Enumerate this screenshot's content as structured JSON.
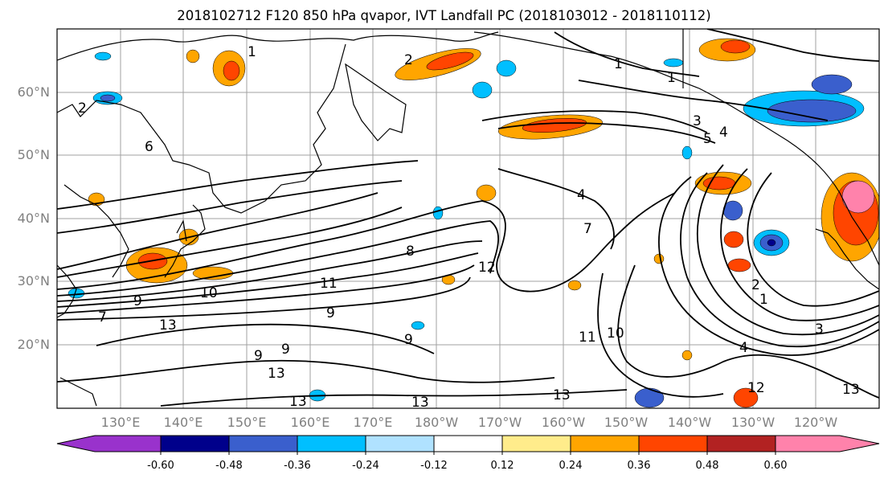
{
  "title": "2018102712 F120 850 hPa qvapor, IVT Landfall PC (2018103012 - 2018110112)",
  "map": {
    "latitude_labels": [
      "60°N",
      "50°N",
      "40°N",
      "30°N",
      "20°N"
    ],
    "longitude_labels": [
      "130°E",
      "140°E",
      "150°E",
      "160°E",
      "170°E",
      "180°W",
      "170°W",
      "160°W",
      "150°W",
      "140°W",
      "130°W",
      "120°W"
    ],
    "contour_labels": [
      "1",
      "2",
      "1",
      "1",
      "3",
      "4",
      "5",
      "2",
      "6",
      "4",
      "7",
      "8",
      "12",
      "11",
      "10",
      "9",
      "7",
      "13",
      "9",
      "9",
      "9",
      "9",
      "13",
      "13",
      "13",
      "13",
      "11",
      "10",
      "2",
      "1",
      "3",
      "4",
      "12",
      "13"
    ],
    "colors": {
      "land_border": "#000000",
      "grid": "#a0a0a0"
    }
  },
  "colorbar": {
    "levels": [
      "-0.60",
      "-0.48",
      "-0.36",
      "-0.24",
      "-0.12",
      "0.12",
      "0.24",
      "0.36",
      "0.48",
      "0.60"
    ],
    "colors": [
      "#9932cc",
      "#00008b",
      "#3a5fcd",
      "#00bfff",
      "#b0e2ff",
      "#ffffff",
      "#ffec8b",
      "#ffa500",
      "#ff4500",
      "#b22222",
      "#ff82ab"
    ]
  }
}
